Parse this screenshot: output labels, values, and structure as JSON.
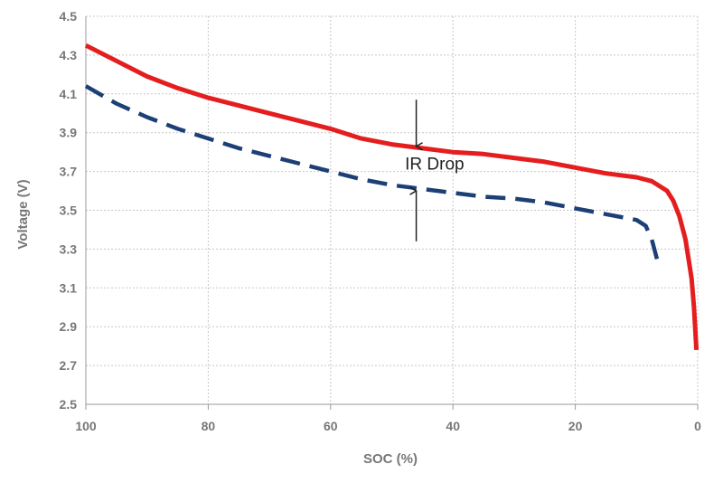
{
  "chart_data": {
    "type": "line",
    "title": "",
    "xlabel": "SOC (%)",
    "ylabel": "Voltage (V)",
    "xlim": [
      100,
      0
    ],
    "x_reversed": true,
    "ylim": [
      2.5,
      4.5
    ],
    "x_ticks": [
      100,
      80,
      60,
      40,
      20,
      0
    ],
    "y_ticks": [
      2.5,
      2.7,
      2.9,
      3.1,
      3.3,
      3.5,
      3.7,
      3.9,
      4.1,
      4.3,
      4.5
    ],
    "y_tick_labels": [
      "2.5",
      "2.7",
      "2.9",
      "3.1",
      "3.3",
      "3.5",
      "3.7",
      "3.9",
      "4.1",
      "4.3",
      "4.5"
    ],
    "grid": true,
    "series": [
      {
        "style": "solid",
        "color": "#e41e1e",
        "points": [
          [
            100,
            4.35
          ],
          [
            95,
            4.27
          ],
          [
            90,
            4.19
          ],
          [
            85,
            4.13
          ],
          [
            80,
            4.08
          ],
          [
            75,
            4.04
          ],
          [
            70,
            4.0
          ],
          [
            65,
            3.96
          ],
          [
            60,
            3.92
          ],
          [
            55,
            3.87
          ],
          [
            50,
            3.84
          ],
          [
            45,
            3.82
          ],
          [
            40,
            3.8
          ],
          [
            35,
            3.79
          ],
          [
            30,
            3.77
          ],
          [
            25,
            3.75
          ],
          [
            20,
            3.72
          ],
          [
            15,
            3.69
          ],
          [
            10,
            3.67
          ],
          [
            7.5,
            3.65
          ],
          [
            5,
            3.6
          ],
          [
            4,
            3.55
          ],
          [
            3,
            3.47
          ],
          [
            2,
            3.35
          ],
          [
            1,
            3.15
          ],
          [
            0.6,
            3.0
          ],
          [
            0.2,
            2.78
          ]
        ]
      },
      {
        "style": "dashed",
        "color": "#1c3f75",
        "points": [
          [
            100,
            4.14
          ],
          [
            95,
            4.05
          ],
          [
            90,
            3.98
          ],
          [
            85,
            3.92
          ],
          [
            80,
            3.87
          ],
          [
            75,
            3.82
          ],
          [
            70,
            3.78
          ],
          [
            65,
            3.74
          ],
          [
            60,
            3.7
          ],
          [
            55,
            3.66
          ],
          [
            50,
            3.63
          ],
          [
            45,
            3.61
          ],
          [
            40,
            3.59
          ],
          [
            35,
            3.57
          ],
          [
            30,
            3.56
          ],
          [
            25,
            3.54
          ],
          [
            20,
            3.51
          ],
          [
            15,
            3.48
          ],
          [
            10,
            3.45
          ],
          [
            8.5,
            3.42
          ],
          [
            7.5,
            3.35
          ],
          [
            6.5,
            3.23
          ]
        ]
      }
    ],
    "annotations": [
      {
        "text": "IR Drop",
        "x": 43,
        "y": 3.71
      },
      {
        "type": "arrow",
        "direction": "down",
        "x": 46,
        "y_from": 4.07,
        "y_to": 3.83
      },
      {
        "type": "arrow",
        "direction": "up",
        "x": 46,
        "y_from": 3.34,
        "y_to": 3.6
      }
    ]
  }
}
